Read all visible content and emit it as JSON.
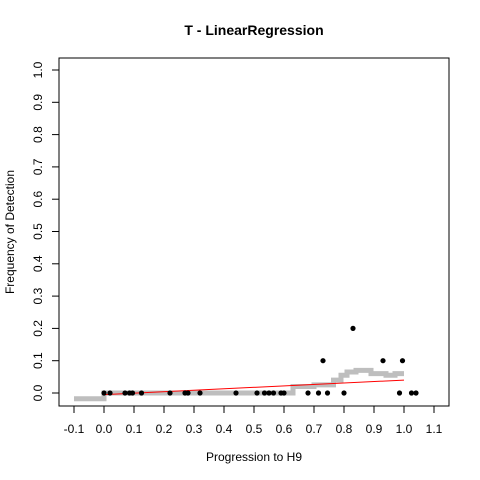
{
  "chart_data": {
    "type": "scatter",
    "title": "T - LinearRegression",
    "xlabel": "Progression to H9",
    "ylabel": "Frequency of Detection",
    "xlim": [
      -0.1,
      1.1
    ],
    "ylim": [
      0.0,
      1.0
    ],
    "grid": false,
    "x_ticks": [
      "-0.1",
      "0.0",
      "0.1",
      "0.2",
      "0.3",
      "0.4",
      "0.5",
      "0.6",
      "0.7",
      "0.8",
      "0.9",
      "1.0",
      "1.1"
    ],
    "y_ticks": [
      "0.0",
      "0.1",
      "0.2",
      "0.3",
      "0.4",
      "0.5",
      "0.6",
      "0.7",
      "0.8",
      "0.9",
      "1.0"
    ],
    "colors": {
      "points": "#000000",
      "trend": "#ff0000",
      "running_mean": "#bebebe"
    },
    "points": [
      {
        "x": 0.0,
        "y": 0.0
      },
      {
        "x": 0.02,
        "y": 0.0
      },
      {
        "x": 0.07,
        "y": 0.0
      },
      {
        "x": 0.085,
        "y": 0.0
      },
      {
        "x": 0.095,
        "y": 0.0
      },
      {
        "x": 0.125,
        "y": 0.0
      },
      {
        "x": 0.22,
        "y": 0.0
      },
      {
        "x": 0.27,
        "y": 0.0
      },
      {
        "x": 0.28,
        "y": 0.0
      },
      {
        "x": 0.32,
        "y": 0.0
      },
      {
        "x": 0.44,
        "y": 0.0
      },
      {
        "x": 0.51,
        "y": 0.0
      },
      {
        "x": 0.535,
        "y": 0.0
      },
      {
        "x": 0.55,
        "y": 0.0
      },
      {
        "x": 0.565,
        "y": 0.0
      },
      {
        "x": 0.59,
        "y": 0.0
      },
      {
        "x": 0.6,
        "y": 0.0
      },
      {
        "x": 0.68,
        "y": 0.0
      },
      {
        "x": 0.715,
        "y": 0.0
      },
      {
        "x": 0.73,
        "y": 0.1
      },
      {
        "x": 0.745,
        "y": 0.0
      },
      {
        "x": 0.8,
        "y": 0.0
      },
      {
        "x": 0.83,
        "y": 0.2
      },
      {
        "x": 0.93,
        "y": 0.1
      },
      {
        "x": 0.985,
        "y": 0.0
      },
      {
        "x": 0.995,
        "y": 0.1
      },
      {
        "x": 1.025,
        "y": 0.0
      },
      {
        "x": 1.04,
        "y": 0.0
      }
    ],
    "trend_line": [
      {
        "x": 0.0,
        "y": -0.005
      },
      {
        "x": 1.0,
        "y": 0.04
      }
    ],
    "running_mean": [
      {
        "x": -0.1,
        "y": -0.018
      },
      {
        "x": 0.0,
        "y": -0.018
      },
      {
        "x": 0.0,
        "y": 0.0
      },
      {
        "x": 0.63,
        "y": 0.0
      },
      {
        "x": 0.63,
        "y": 0.02
      },
      {
        "x": 0.7,
        "y": 0.02
      },
      {
        "x": 0.7,
        "y": 0.025
      },
      {
        "x": 0.765,
        "y": 0.025
      },
      {
        "x": 0.765,
        "y": 0.04
      },
      {
        "x": 0.79,
        "y": 0.04
      },
      {
        "x": 0.79,
        "y": 0.055
      },
      {
        "x": 0.81,
        "y": 0.055
      },
      {
        "x": 0.81,
        "y": 0.065
      },
      {
        "x": 0.84,
        "y": 0.065
      },
      {
        "x": 0.84,
        "y": 0.07
      },
      {
        "x": 0.89,
        "y": 0.07
      },
      {
        "x": 0.89,
        "y": 0.06
      },
      {
        "x": 0.94,
        "y": 0.06
      },
      {
        "x": 0.94,
        "y": 0.055
      },
      {
        "x": 0.97,
        "y": 0.055
      },
      {
        "x": 0.97,
        "y": 0.06
      },
      {
        "x": 1.0,
        "y": 0.06
      }
    ]
  }
}
